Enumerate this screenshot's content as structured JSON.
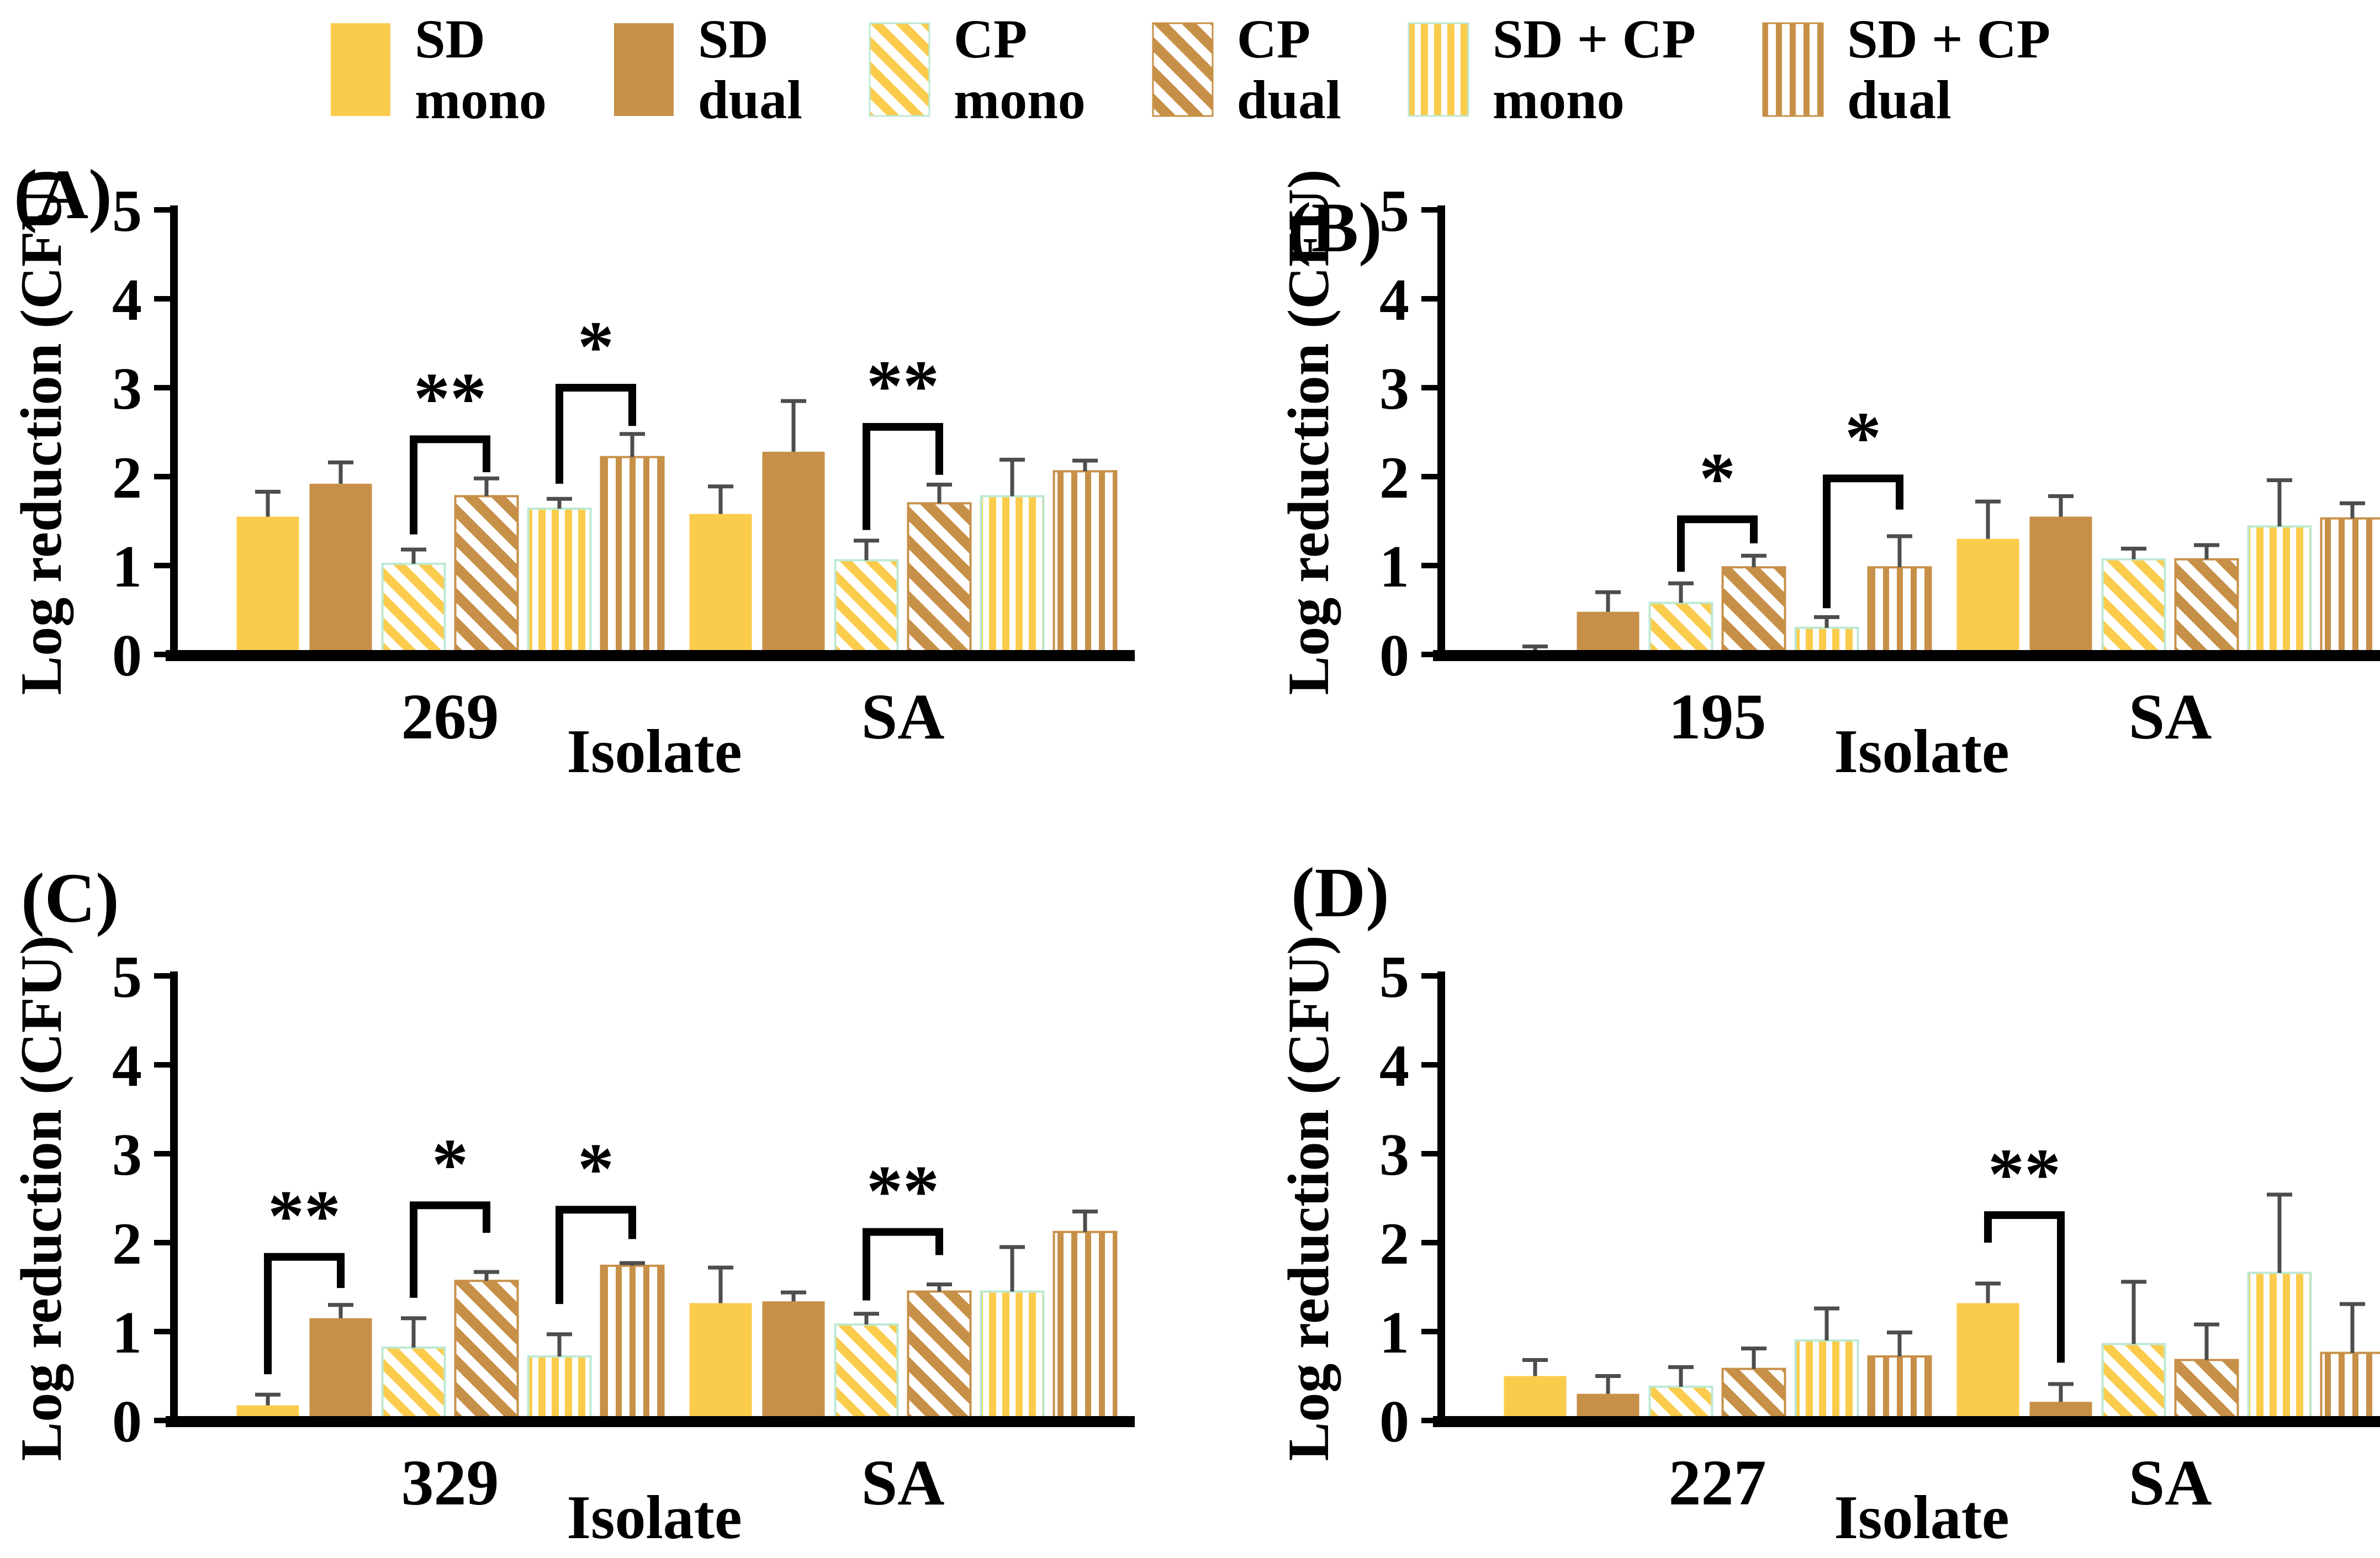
{
  "figure": {
    "kind": "four-panel bar figure",
    "panel_letters": [
      "(A)",
      "(B)",
      "(C)",
      "(D)"
    ]
  },
  "colors": {
    "bar_yellow": "#FBCC4C",
    "bar_brown": "#C79048",
    "mint_border": "#BDE9D2",
    "error_bar": "#4D4D4D",
    "axis": "#000000",
    "significance": "#000000",
    "background": "#FFFFFF"
  },
  "legend": {
    "items": [
      {
        "line1": "SD",
        "line2": "mono",
        "style": "solid-yellow"
      },
      {
        "line1": "SD",
        "line2": "dual",
        "style": "solid-brown"
      },
      {
        "line1": "CP",
        "line2": "mono",
        "style": "diag-yellow"
      },
      {
        "line1": "CP",
        "line2": "dual",
        "style": "diag-brown"
      },
      {
        "line1": "SD + CP",
        "line2": "mono",
        "style": "vert-yellow"
      },
      {
        "line1": "SD + CP",
        "line2": "dual",
        "style": "vert-brown"
      }
    ]
  },
  "chart_data": [
    {
      "panel": "A",
      "panel_label": "(A)",
      "type": "bar",
      "title": "",
      "ylabel": "Log reduction (CFU)",
      "xlabel": "Isolate",
      "ylim": [
        0,
        5
      ],
      "yticks": [
        0,
        1,
        2,
        3,
        4,
        5
      ],
      "grid": false,
      "legend_position": "top-shared",
      "series": [
        "SD mono",
        "SD dual",
        "CP mono",
        "CP dual",
        "SD + CP mono",
        "SD + CP dual"
      ],
      "series_styles": [
        "solid-yellow",
        "solid-brown",
        "diag-yellow",
        "diag-brown",
        "vert-yellow",
        "vert-brown"
      ],
      "groups": [
        {
          "name": "269",
          "values": [
            1.55,
            1.92,
            1.02,
            1.78,
            1.64,
            2.22
          ],
          "errors": [
            0.28,
            0.24,
            0.16,
            0.2,
            0.11,
            0.26
          ]
        },
        {
          "name": "SA",
          "values": [
            1.58,
            2.28,
            1.06,
            1.7,
            1.78,
            2.06
          ],
          "errors": [
            0.31,
            0.57,
            0.22,
            0.21,
            0.41,
            0.12
          ]
        }
      ],
      "significance": [
        {
          "group": 0,
          "from": 2,
          "to": 3,
          "label": "**",
          "left_y": 1.35,
          "top_y": 2.42,
          "right_y": 2.05
        },
        {
          "group": 0,
          "from": 4,
          "to": 5,
          "label": "*",
          "left_y": 1.92,
          "top_y": 3.0,
          "right_y": 2.57
        },
        {
          "group": 1,
          "from": 2,
          "to": 3,
          "label": "**",
          "left_y": 1.4,
          "top_y": 2.56,
          "right_y": 2.02
        }
      ]
    },
    {
      "panel": "B",
      "panel_label": "(B)",
      "type": "bar",
      "title": "",
      "ylabel": "Log reduction (CFU)",
      "xlabel": "Isolate",
      "ylim": [
        0,
        5
      ],
      "yticks": [
        0,
        1,
        2,
        3,
        4,
        5
      ],
      "grid": false,
      "legend_position": "top-shared",
      "series": [
        "SD mono",
        "SD dual",
        "CP mono",
        "CP dual",
        "SD + CP mono",
        "SD + CP dual"
      ],
      "series_styles": [
        "solid-yellow",
        "solid-brown",
        "diag-yellow",
        "diag-brown",
        "vert-yellow",
        "vert-brown"
      ],
      "groups": [
        {
          "name": "195",
          "values": [
            0.04,
            0.48,
            0.58,
            0.98,
            0.3,
            0.98
          ],
          "errors": [
            0.05,
            0.22,
            0.22,
            0.13,
            0.12,
            0.35
          ]
        },
        {
          "name": "SA",
          "values": [
            1.3,
            1.55,
            1.07,
            1.07,
            1.44,
            1.53
          ],
          "errors": [
            0.42,
            0.23,
            0.12,
            0.16,
            0.52,
            0.17
          ]
        }
      ],
      "significance": [
        {
          "group": 0,
          "from": 2,
          "to": 3,
          "label": "*",
          "left_y": 0.93,
          "top_y": 1.52,
          "right_y": 1.25
        },
        {
          "group": 0,
          "from": 4,
          "to": 5,
          "label": "*",
          "left_y": 0.52,
          "top_y": 1.98,
          "right_y": 1.63
        }
      ]
    },
    {
      "panel": "C",
      "panel_label": "(C)",
      "type": "bar",
      "title": "",
      "ylabel": "Log reduction (CFU)",
      "xlabel": "Isolate",
      "ylim": [
        0,
        5
      ],
      "yticks": [
        0,
        1,
        2,
        3,
        4,
        5
      ],
      "grid": false,
      "legend_position": "top-shared",
      "series": [
        "SD mono",
        "SD dual",
        "CP mono",
        "CP dual",
        "SD + CP mono",
        "SD + CP dual"
      ],
      "series_styles": [
        "solid-yellow",
        "solid-brown",
        "diag-yellow",
        "diag-brown",
        "vert-yellow",
        "vert-brown"
      ],
      "groups": [
        {
          "name": "329",
          "values": [
            0.17,
            1.15,
            0.82,
            1.57,
            0.72,
            1.74
          ],
          "errors": [
            0.12,
            0.15,
            0.33,
            0.1,
            0.25,
            0.03
          ]
        },
        {
          "name": "SA",
          "values": [
            1.32,
            1.34,
            1.08,
            1.45,
            1.45,
            2.12
          ],
          "errors": [
            0.4,
            0.1,
            0.12,
            0.08,
            0.5,
            0.23
          ]
        }
      ],
      "significance": [
        {
          "group": 0,
          "from": 0,
          "to": 1,
          "label": "**",
          "left_y": 0.52,
          "top_y": 1.84,
          "right_y": 1.49
        },
        {
          "group": 0,
          "from": 2,
          "to": 3,
          "label": "*",
          "left_y": 1.38,
          "top_y": 2.42,
          "right_y": 2.11
        },
        {
          "group": 0,
          "from": 4,
          "to": 5,
          "label": "*",
          "left_y": 1.31,
          "top_y": 2.37,
          "right_y": 2.04
        },
        {
          "group": 1,
          "from": 2,
          "to": 3,
          "label": "**",
          "left_y": 1.35,
          "top_y": 2.12,
          "right_y": 1.86
        }
      ]
    },
    {
      "panel": "D",
      "panel_label": "(D)",
      "type": "bar",
      "title": "",
      "ylabel": "Log reduction (CFU)",
      "xlabel": "Isolate",
      "ylim": [
        0,
        5
      ],
      "yticks": [
        0,
        1,
        2,
        3,
        4,
        5
      ],
      "grid": false,
      "legend_position": "top-shared",
      "series": [
        "SD mono",
        "SD dual",
        "CP mono",
        "CP dual",
        "SD + CP mono",
        "SD + CP dual"
      ],
      "series_styles": [
        "solid-yellow",
        "solid-brown",
        "diag-yellow",
        "diag-brown",
        "vert-yellow",
        "vert-brown"
      ],
      "groups": [
        {
          "name": "227",
          "values": [
            0.5,
            0.3,
            0.38,
            0.58,
            0.9,
            0.72
          ],
          "errors": [
            0.18,
            0.2,
            0.22,
            0.23,
            0.36,
            0.27
          ]
        },
        {
          "name": "SA",
          "values": [
            1.32,
            0.21,
            0.86,
            0.68,
            1.66,
            0.76
          ],
          "errors": [
            0.22,
            0.2,
            0.7,
            0.4,
            0.88,
            0.55
          ]
        }
      ],
      "significance": [
        {
          "group": 1,
          "from": 0,
          "to": 1,
          "label": "**",
          "left_y": 2.0,
          "top_y": 2.31,
          "right_y": 0.65
        }
      ]
    }
  ]
}
